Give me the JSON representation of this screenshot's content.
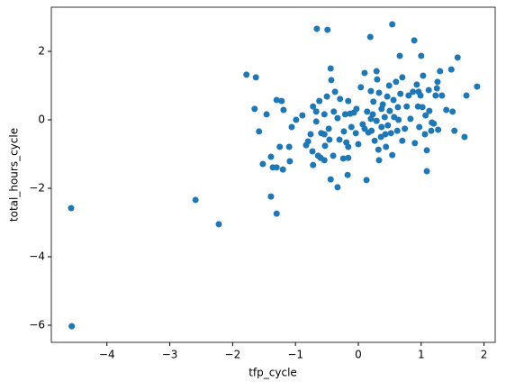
{
  "chart_data": {
    "type": "scatter",
    "x_label": "tfp_cycle",
    "y_label": "total_hours_cycle",
    "color": "#1f77b4",
    "xlim": [
      -4.885,
      2.178
    ],
    "ylim": [
      -6.5,
      3.29
    ],
    "xticks": [
      {
        "value": -4,
        "label": "−4"
      },
      {
        "value": -3,
        "label": "−3"
      },
      {
        "value": -2,
        "label": "−2"
      },
      {
        "value": -1,
        "label": "−1"
      },
      0,
      1,
      2
    ],
    "yticks": [
      {
        "value": -6,
        "label": "−6"
      },
      {
        "value": -4,
        "label": "−4"
      },
      {
        "value": -2,
        "label": "−2"
      },
      0,
      2
    ],
    "x": [
      -4.57,
      -4.56,
      -2.59,
      -2.22,
      -1.78,
      -1.63,
      -1.65,
      -1.58,
      -1.52,
      -1.46,
      -1.39,
      -1.36,
      -1.39,
      -1.3,
      -1.3,
      -1.3,
      -1.25,
      -1.22,
      -1.2,
      -1.19,
      -1.1,
      -1.09,
      -1.06,
      -0.99,
      -0.89,
      -0.83,
      -0.8,
      -0.76,
      -0.73,
      -0.72,
      -0.72,
      -0.67,
      -0.67,
      -0.66,
      -0.62,
      -0.64,
      -0.59,
      -0.6,
      -0.54,
      -0.54,
      -0.53,
      -0.54,
      -0.5,
      -0.49,
      -0.47,
      -0.46,
      -0.44,
      -0.43,
      -0.44,
      -0.4,
      -0.39,
      -0.37,
      -0.33,
      -0.33,
      -0.3,
      -0.29,
      -0.24,
      -0.23,
      -0.21,
      -0.19,
      -0.17,
      -0.16,
      -0.16,
      -0.16,
      -0.13,
      -0.11,
      -0.07,
      -0.04,
      -0.03,
      0,
      0.04,
      0.07,
      0.1,
      0.1,
      0.13,
      0.14,
      0.16,
      0.19,
      0.2,
      0.2,
      0.21,
      0.23,
      0.24,
      0.26,
      0.29,
      0.29,
      0.3,
      0.32,
      0.33,
      0.33,
      0.36,
      0.37,
      0.37,
      0.39,
      0.42,
      0.43,
      0.44,
      0.46,
      0.47,
      0.49,
      0.5,
      0.54,
      0.52,
      0.54,
      0.56,
      0.57,
      0.6,
      0.62,
      0.63,
      0.64,
      0.66,
      0.67,
      0.7,
      0.7,
      0.74,
      0.77,
      0.8,
      0.83,
      0.87,
      0.89,
      0.9,
      0.93,
      0.95,
      0.96,
      0.97,
      0.99,
      1.0,
      1.02,
      1.03,
      1.06,
      1.07,
      1.09,
      1.09,
      1.12,
      1.13,
      1.16,
      1.17,
      1.2,
      1.23,
      1.25,
      1.26,
      1.27,
      1.3,
      1.33,
      1.4,
      1.48,
      1.5,
      1.53,
      1.58,
      1.69,
      1.72,
      1.89
    ],
    "values": [
      -2.58,
      -6.03,
      -2.34,
      -3.05,
      1.32,
      1.24,
      0.32,
      -0.34,
      -1.29,
      0.16,
      -1.08,
      -1.39,
      -2.24,
      -1.39,
      0.58,
      -2.74,
      -0.79,
      0.55,
      -1.45,
      0.29,
      -0.79,
      -1.21,
      -0.21,
      0,
      0.13,
      -0.74,
      -0.63,
      -0.42,
      -0.92,
      0.39,
      -1.32,
      0.24,
      -0.05,
      2.66,
      0.55,
      -1.05,
      -0.39,
      -1.11,
      0.16,
      -0.42,
      -0.76,
      -1.18,
      0.68,
      2.63,
      -0.26,
      -0.58,
      1.5,
      1.16,
      -1.74,
      -1.05,
      0.24,
      0.82,
      0.05,
      -1.97,
      -0.58,
      0.61,
      -1.13,
      -0.34,
      0.16,
      -0.66,
      -1.61,
      0.55,
      -0.79,
      -1.11,
      0.18,
      -0.21,
      0.21,
      -0.39,
      0.32,
      -0.71,
      0.95,
      -0.13,
      -0.26,
      1.37,
      -1.76,
      0.24,
      -0.37,
      2.42,
      0.84,
      0.03,
      -0.32,
      0.16,
      0.53,
      -0.61,
      1.42,
      -0.03,
      1.18,
      -0.87,
      0.79,
      -1.18,
      -0.5,
      0.32,
      -0.21,
      0.45,
      0.08,
      -0.42,
      -0.79,
      0.68,
      -0.16,
      1.0,
      0.26,
      2.79,
      -0.39,
      -1.03,
      0.58,
      0.08,
      1.11,
      -0.32,
      0.37,
      0,
      1.87,
      0.76,
      1.24,
      -0.61,
      -0.26,
      0.39,
      0.71,
      0.03,
      0.82,
      2.32,
      -0.68,
      1.03,
      0.39,
      0.82,
      -0.21,
      0.71,
      1.87,
      0.37,
      1.29,
      -0.42,
      0.13,
      -1.5,
      -0.89,
      0.87,
      0.26,
      -0.32,
      -0.08,
      -0.11,
      0.71,
      0.92,
      1.11,
      -0.29,
      1.42,
      0.71,
      0.29,
      1.47,
      0.24,
      -0.32,
      1.82,
      -0.5,
      0.71,
      0.97
    ]
  }
}
